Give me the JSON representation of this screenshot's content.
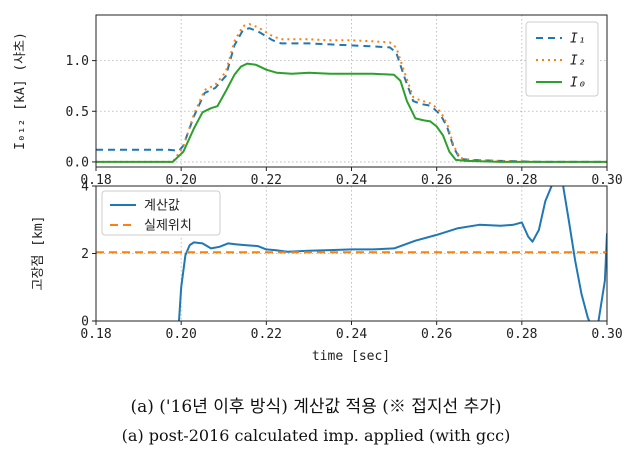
{
  "captions": {
    "line1": "(a) ('16년 이후 방식) 계산값 적용 (※ 접지선 추가)",
    "line2": "(a) post-2016 calculated imp. applied (with gcc)"
  },
  "chart_data": [
    {
      "type": "line",
      "ylabel": "I₀₁₂ [kA] (샤초)",
      "xlim": [
        0.18,
        0.3
      ],
      "ylim": [
        -0.05,
        1.45
      ],
      "xticks": [
        "0.18",
        "0.20",
        "0.22",
        "0.24",
        "0.26",
        "0.28",
        "0.30"
      ],
      "yticks": [
        {
          "v": 0.0,
          "label": "0.0"
        },
        {
          "v": 0.5,
          "label": "0.5"
        },
        {
          "v": 1.0,
          "label": "1.0"
        }
      ],
      "grid": true,
      "legend_position": "top-right",
      "series": [
        {
          "name": "I₁",
          "color": "#1f77b4",
          "dash": "7,5",
          "x": [
            0.18,
            0.197,
            0.1995,
            0.2005,
            0.203,
            0.2055,
            0.208,
            0.2105,
            0.2125,
            0.2145,
            0.216,
            0.218,
            0.2215,
            0.2235,
            0.226,
            0.23,
            0.235,
            0.24,
            0.245,
            0.249,
            0.2505,
            0.2525,
            0.2545,
            0.2565,
            0.258,
            0.2595,
            0.261,
            0.2625,
            0.264,
            0.2655,
            0.268,
            0.275,
            0.285,
            0.3
          ],
          "y": [
            0.12,
            0.12,
            0.11,
            0.16,
            0.45,
            0.68,
            0.73,
            0.85,
            1.15,
            1.3,
            1.32,
            1.29,
            1.2,
            1.17,
            1.17,
            1.17,
            1.16,
            1.15,
            1.14,
            1.13,
            1.08,
            0.83,
            0.6,
            0.57,
            0.56,
            0.52,
            0.46,
            0.34,
            0.14,
            0.03,
            0.02,
            0.01,
            0.0,
            0.0
          ]
        },
        {
          "name": "I₂",
          "color": "#ff7f0e",
          "dash": "2,4",
          "x": [
            0.18,
            0.198,
            0.2005,
            0.203,
            0.2055,
            0.208,
            0.2105,
            0.2125,
            0.2145,
            0.216,
            0.218,
            0.2215,
            0.2235,
            0.226,
            0.23,
            0.235,
            0.24,
            0.245,
            0.249,
            0.2505,
            0.2525,
            0.2545,
            0.2565,
            0.258,
            0.2595,
            0.261,
            0.2625,
            0.264,
            0.2655,
            0.268,
            0.275,
            0.285,
            0.3
          ],
          "y": [
            0.0,
            0.0,
            0.15,
            0.47,
            0.71,
            0.76,
            0.89,
            1.19,
            1.34,
            1.36,
            1.33,
            1.24,
            1.21,
            1.21,
            1.21,
            1.2,
            1.2,
            1.19,
            1.18,
            1.13,
            0.88,
            0.64,
            0.6,
            0.59,
            0.55,
            0.49,
            0.37,
            0.16,
            0.04,
            0.02,
            0.01,
            0.0,
            0.0
          ]
        },
        {
          "name": "I₀",
          "color": "#2ca02c",
          "dash": "",
          "x": [
            0.18,
            0.198,
            0.2005,
            0.203,
            0.205,
            0.207,
            0.2085,
            0.2105,
            0.2125,
            0.214,
            0.2155,
            0.2175,
            0.22,
            0.2225,
            0.226,
            0.23,
            0.235,
            0.24,
            0.245,
            0.25,
            0.2515,
            0.253,
            0.255,
            0.257,
            0.2585,
            0.26,
            0.2615,
            0.263,
            0.2645,
            0.267,
            0.275,
            0.285,
            0.3
          ],
          "y": [
            0.0,
            0.0,
            0.1,
            0.33,
            0.49,
            0.53,
            0.55,
            0.7,
            0.86,
            0.94,
            0.97,
            0.96,
            0.91,
            0.88,
            0.87,
            0.88,
            0.87,
            0.87,
            0.87,
            0.86,
            0.8,
            0.6,
            0.43,
            0.41,
            0.4,
            0.35,
            0.26,
            0.1,
            0.02,
            0.01,
            0.0,
            0.0,
            0.0
          ]
        }
      ]
    },
    {
      "type": "line",
      "xlabel": "time [sec]",
      "ylabel": "고장점 [km]",
      "xlim": [
        0.18,
        0.3
      ],
      "ylim": [
        0,
        4
      ],
      "xticks": [
        "0.18",
        "0.20",
        "0.22",
        "0.24",
        "0.26",
        "0.28",
        "0.30"
      ],
      "yticks": [
        {
          "v": 0,
          "label": "0"
        },
        {
          "v": 2,
          "label": "2"
        },
        {
          "v": 4,
          "label": "4"
        }
      ],
      "grid": true,
      "legend_position": "top-left",
      "series": [
        {
          "name": "계산값",
          "color": "#1f77b4",
          "dash": "",
          "x": [
            0.1995,
            0.2,
            0.201,
            0.202,
            0.203,
            0.205,
            0.207,
            0.209,
            0.211,
            0.213,
            0.215,
            0.218,
            0.22,
            0.222,
            0.225,
            0.23,
            0.235,
            0.24,
            0.245,
            0.25,
            0.255,
            0.26,
            0.265,
            0.27,
            0.275,
            0.278,
            0.28,
            0.2815,
            0.2825,
            0.284,
            0.2855,
            0.287,
            0.288,
            0.2895,
            0.291,
            0.2925,
            0.294,
            0.2955,
            0.2965,
            0.298,
            0.2995,
            0.3
          ],
          "y": [
            0.0,
            1.0,
            1.95,
            2.25,
            2.33,
            2.3,
            2.15,
            2.2,
            2.3,
            2.27,
            2.25,
            2.22,
            2.12,
            2.1,
            2.05,
            2.08,
            2.1,
            2.12,
            2.12,
            2.15,
            2.38,
            2.55,
            2.75,
            2.85,
            2.82,
            2.85,
            2.92,
            2.5,
            2.35,
            2.7,
            3.55,
            4.0,
            4.2,
            4.15,
            3.0,
            1.8,
            0.8,
            0.1,
            -0.2,
            0.0,
            1.2,
            2.6
          ]
        },
        {
          "name": "실제위치",
          "color": "#ff7f0e",
          "dash": "8,5",
          "x": [
            0.18,
            0.3
          ],
          "y": [
            2.04,
            2.04
          ]
        }
      ]
    }
  ]
}
